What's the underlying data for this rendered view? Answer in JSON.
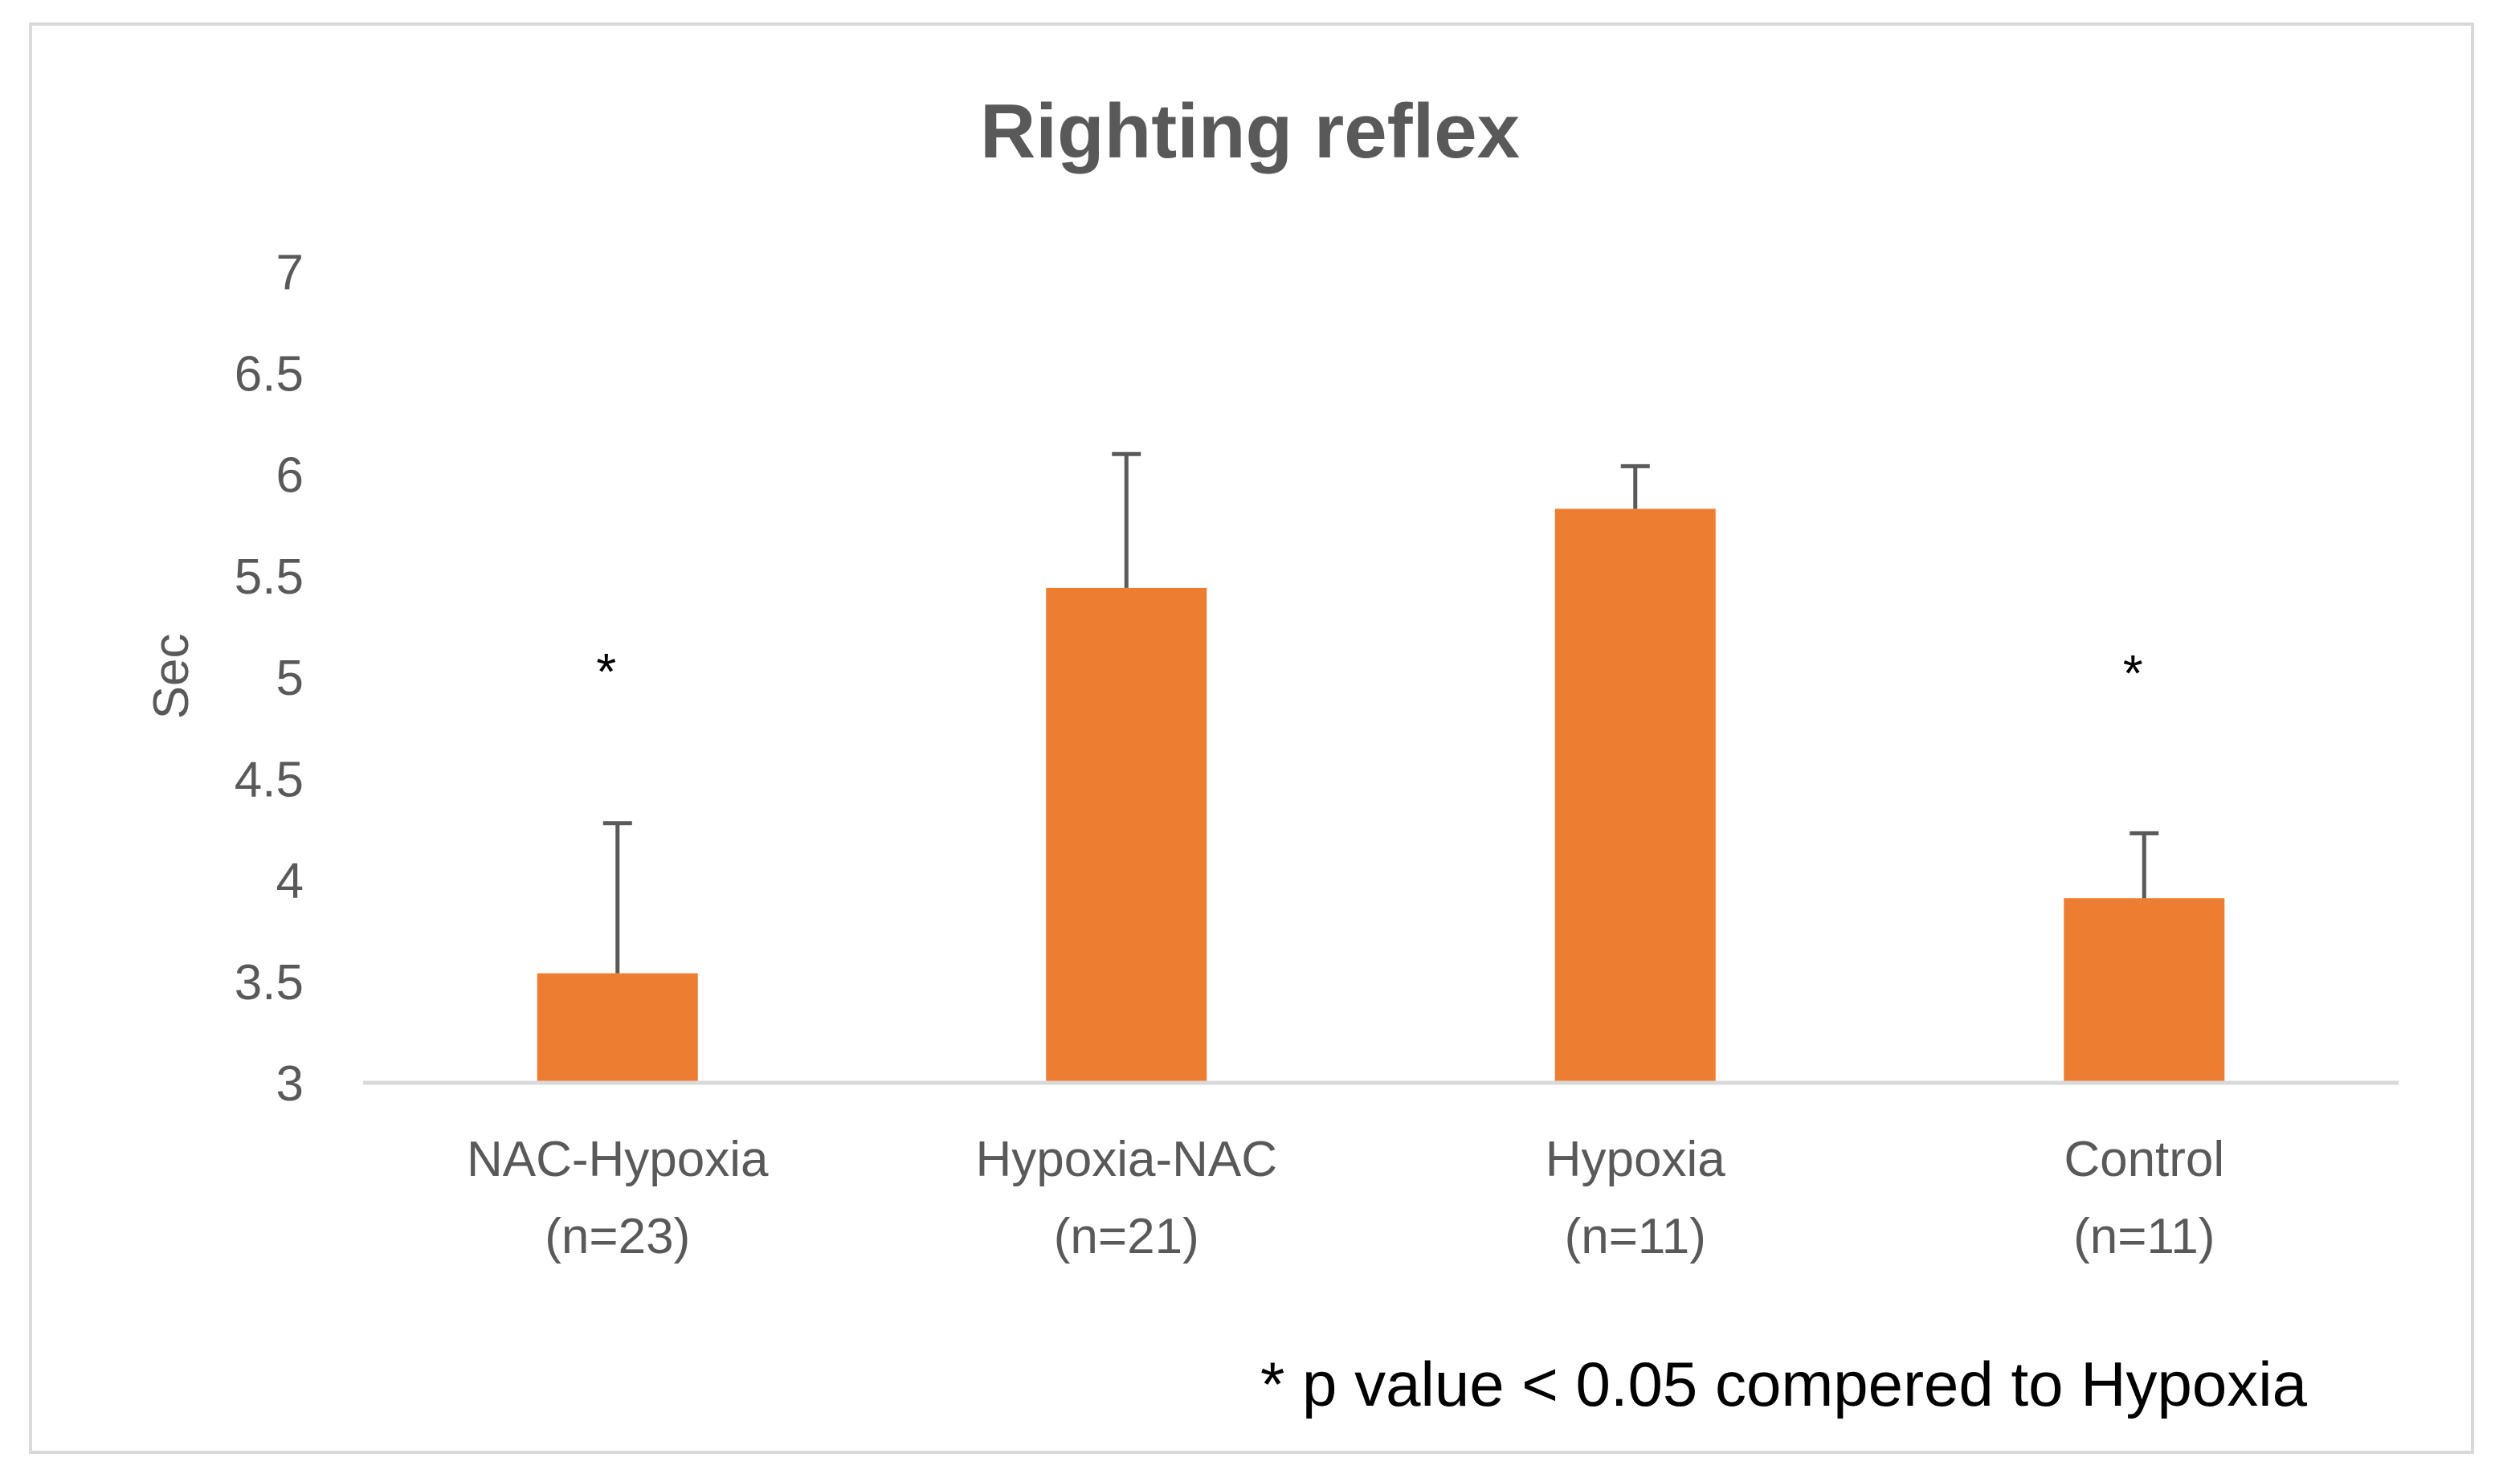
{
  "chart_data": {
    "type": "bar",
    "title": "Righting reflex",
    "ylabel": "Sec",
    "xlabel": "",
    "ylim": [
      3,
      7
    ],
    "ytick_step": 0.5,
    "yticks": [
      "3",
      "3.5",
      "4",
      "4.5",
      "5",
      "5.5",
      "6",
      "6.5",
      "7"
    ],
    "grid": false,
    "categories": [
      {
        "name": "NAC-Hypoxia",
        "n": "(n=23)"
      },
      {
        "name": "Hypoxia-NAC",
        "n": "(n=21)"
      },
      {
        "name": "Hypoxia",
        "n": "(n=11)"
      },
      {
        "name": "Control",
        "n": "(n=11)"
      }
    ],
    "values": [
      3.54,
      5.44,
      5.83,
      3.91
    ],
    "error_upper": [
      0.74,
      0.66,
      0.21,
      0.32
    ],
    "significance_markers": [
      "*",
      "",
      "",
      "*"
    ],
    "footnote": "* p value < 0.05 compered to Hypoxia",
    "colors": {
      "bar": "#ED7D31",
      "error_bar": "#595959",
      "title": "#595959",
      "tick_label": "#595959",
      "axis_line": "#D9D9D9",
      "frame": "#D9D9D9",
      "marker": "#000000",
      "footnote": "#000000"
    }
  }
}
